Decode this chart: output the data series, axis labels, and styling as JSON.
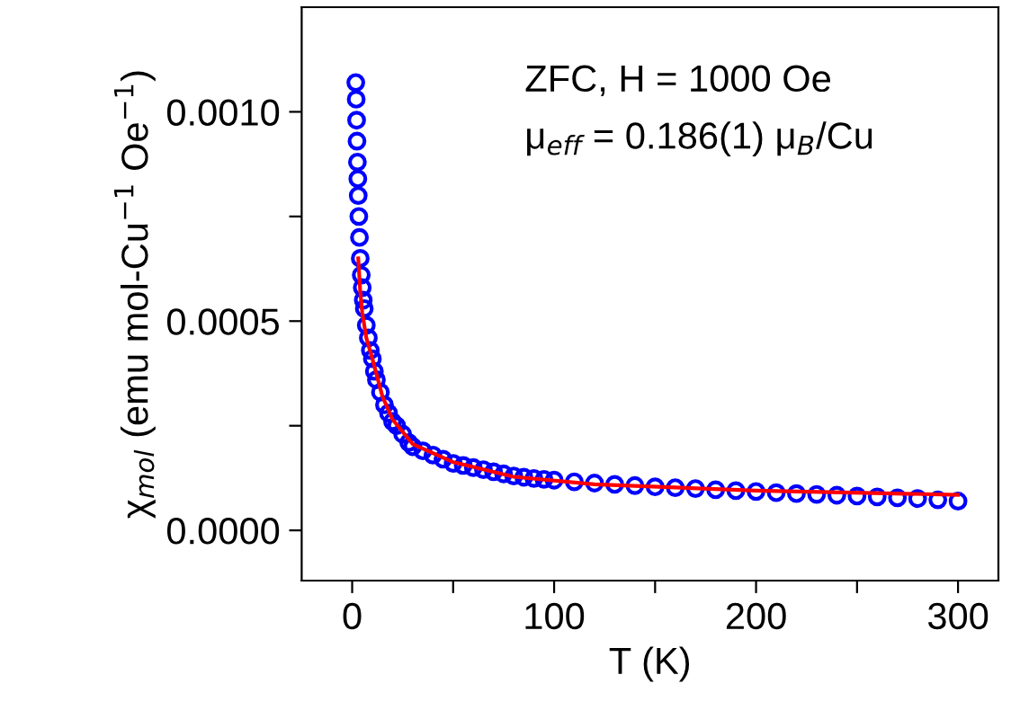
{
  "chart_data": {
    "type": "scatter",
    "xlabel": "T (K)",
    "ylabel": "χ$_{mol}$ (emu mol-Cu$^{−1}$ Oe$^{−1}$)",
    "annotations": [
      "ZFC, H = 1000 Oe",
      "μ$_{eff}$ = 0.186(1) μ$_{B}$/Cu"
    ],
    "series": [
      {
        "color": "#0000ff",
        "marker": "circle",
        "x": [
          1.8,
          2,
          2.2,
          2.4,
          2.6,
          2.8,
          3,
          3.3,
          3.6,
          4,
          4.5,
          5,
          5.5,
          6,
          7,
          8,
          9,
          10,
          11,
          12,
          14,
          16,
          18,
          20,
          22,
          25,
          28,
          30,
          35,
          40,
          45,
          50,
          55,
          60,
          65,
          70,
          75,
          80,
          85,
          90,
          95,
          100,
          110,
          120,
          130,
          140,
          150,
          160,
          170,
          180,
          190,
          200,
          210,
          220,
          230,
          240,
          250,
          260,
          270,
          280,
          290,
          300
        ],
        "values": [
          0.00107,
          0.00103,
          0.00098,
          0.00093,
          0.00088,
          0.00084,
          0.0008,
          0.00075,
          0.0007,
          0.00065,
          0.00061,
          0.00058,
          0.00055,
          0.00053,
          0.00049,
          0.00046,
          0.00043,
          0.00041,
          0.00038,
          0.00036,
          0.00033,
          0.0003,
          0.00028,
          0.00026,
          0.00025,
          0.00023,
          0.00021,
          0.0002,
          0.00019,
          0.00018,
          0.00017,
          0.00016,
          0.000155,
          0.00015,
          0.000145,
          0.00014,
          0.000135,
          0.00013,
          0.000127,
          0.000124,
          0.000122,
          0.00012,
          0.000116,
          0.000113,
          0.00011,
          0.000107,
          0.000104,
          0.000102,
          0.0001,
          9.7e-05,
          9.5e-05,
          9.3e-05,
          9e-05,
          8.8e-05,
          8.6e-05,
          8.4e-05,
          8.2e-05,
          8e-05,
          7.8e-05,
          7.6e-05,
          7.3e-05,
          7e-05
        ]
      },
      {
        "type": "line",
        "color": "#ff0000",
        "marker": "none",
        "line_style": "solid",
        "x": [
          3,
          4,
          5,
          7,
          10,
          15,
          20,
          30,
          50,
          80,
          120,
          200,
          300
        ],
        "values": [
          0.00065,
          0.00057,
          0.00052,
          0.00046,
          0.00041,
          0.00032,
          0.000265,
          0.000206,
          0.000163,
          0.000128,
          0.00011,
          9.5e-05,
          8.5e-05
        ]
      }
    ],
    "xlim": [
      -25,
      320
    ],
    "xticks": [
      0,
      {
        "value": 50,
        "label": null
      },
      100,
      {
        "value": 150,
        "label": null
      },
      200,
      {
        "value": 250,
        "label": null
      },
      300
    ],
    "ylim": [
      -0.00012,
      0.00125
    ],
    "yticks": [
      {
        "value": 0,
        "label": "0.0000"
      },
      {
        "value": 0.00025,
        "label": null
      },
      {
        "value": 0.0005,
        "label": "0.0005"
      },
      {
        "value": 0.00075,
        "label": null
      },
      {
        "value": 0.001,
        "label": "0.0010"
      }
    ],
    "grid": false,
    "legend": false
  }
}
